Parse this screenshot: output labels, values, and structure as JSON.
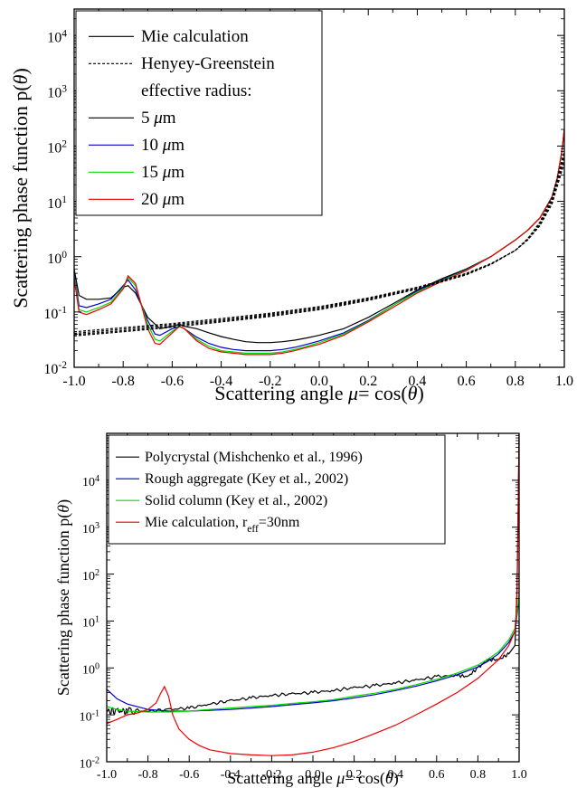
{
  "chart_data": [
    {
      "type": "line",
      "xlabel_parts": [
        "Scattering angle ",
        "μ",
        "= cos(",
        "θ",
        ")"
      ],
      "ylabel_parts": [
        "Scattering phase function p(",
        "θ",
        ")"
      ],
      "xlim": [
        -1.0,
        1.0
      ],
      "ylim": [
        0.01,
        30000
      ],
      "yscale": "log",
      "x_ticks": [
        "-1.0",
        "-0.8",
        "-0.6",
        "-0.4",
        "-0.2",
        "0.0",
        "0.2",
        "0.4",
        "0.6",
        "0.8",
        "1.0"
      ],
      "y_ticks": [
        {
          "base": "10",
          "exp": "-2"
        },
        {
          "base": "10",
          "exp": "-1"
        },
        {
          "base": "10",
          "exp": "0"
        },
        {
          "base": "10",
          "exp": "1"
        },
        {
          "base": "10",
          "exp": "2"
        },
        {
          "base": "10",
          "exp": "3"
        },
        {
          "base": "10",
          "exp": "4"
        }
      ],
      "legend_position": "top-left",
      "legend": [
        {
          "label": "Mie calculation",
          "style": "solid",
          "color": "#000000"
        },
        {
          "label": "Henyey-Greenstein",
          "style": "dashed",
          "color": "#000000"
        },
        {
          "label": "effective radius:",
          "style": "none",
          "color": "#000000"
        },
        {
          "label": "5 ",
          "unit_mu": "μ",
          "unit_rest": "m",
          "style": "solid",
          "color": "#000000"
        },
        {
          "label": "10 ",
          "unit_mu": "μ",
          "unit_rest": "m",
          "style": "solid",
          "color": "#0000cc"
        },
        {
          "label": "15 ",
          "unit_mu": "μ",
          "unit_rest": "m",
          "style": "solid",
          "color": "#00dd00"
        },
        {
          "label": "20 ",
          "unit_mu": "μ",
          "unit_rest": "m",
          "style": "solid",
          "color": "#ee0000"
        }
      ],
      "series": [
        {
          "color": "#000000",
          "style": "solid",
          "x": [
            -1.0,
            -0.98,
            -0.95,
            -0.9,
            -0.85,
            -0.8,
            -0.78,
            -0.75,
            -0.7,
            -0.65,
            -0.6,
            -0.57,
            -0.55,
            -0.5,
            -0.45,
            -0.4,
            -0.35,
            -0.3,
            -0.25,
            -0.2,
            -0.15,
            -0.1,
            -0.05,
            0.0,
            0.1,
            0.2,
            0.3,
            0.4,
            0.5,
            0.6,
            0.7,
            0.8,
            0.85,
            0.9,
            0.95,
            0.97,
            0.99,
            1.0
          ],
          "y": [
            0.6,
            0.2,
            0.17,
            0.17,
            0.18,
            0.28,
            0.3,
            0.22,
            0.08,
            0.05,
            0.055,
            0.06,
            0.055,
            0.05,
            0.042,
            0.036,
            0.032,
            0.029,
            0.028,
            0.028,
            0.029,
            0.031,
            0.034,
            0.038,
            0.05,
            0.08,
            0.14,
            0.25,
            0.4,
            0.6,
            1.0,
            2.0,
            3.0,
            5.0,
            12,
            25,
            80,
            200
          ]
        },
        {
          "color": "#0000cc",
          "style": "solid",
          "x": [
            -1.0,
            -0.98,
            -0.95,
            -0.9,
            -0.85,
            -0.8,
            -0.78,
            -0.75,
            -0.7,
            -0.67,
            -0.65,
            -0.6,
            -0.57,
            -0.55,
            -0.5,
            -0.45,
            -0.4,
            -0.35,
            -0.3,
            -0.25,
            -0.2,
            -0.15,
            -0.1,
            -0.05,
            0.0,
            0.1,
            0.2,
            0.3,
            0.4,
            0.5,
            0.6,
            0.7,
            0.8,
            0.85,
            0.9,
            0.95,
            0.97,
            0.99,
            1.0
          ],
          "y": [
            0.5,
            0.13,
            0.12,
            0.14,
            0.17,
            0.3,
            0.38,
            0.25,
            0.07,
            0.04,
            0.038,
            0.05,
            0.055,
            0.05,
            0.035,
            0.027,
            0.023,
            0.021,
            0.02,
            0.02,
            0.02,
            0.021,
            0.023,
            0.026,
            0.03,
            0.042,
            0.07,
            0.13,
            0.24,
            0.38,
            0.58,
            1.0,
            2.0,
            3.0,
            5.0,
            12,
            25,
            80,
            200
          ]
        },
        {
          "color": "#00dd00",
          "style": "solid",
          "x": [
            -1.0,
            -0.98,
            -0.95,
            -0.9,
            -0.85,
            -0.8,
            -0.78,
            -0.75,
            -0.7,
            -0.67,
            -0.65,
            -0.6,
            -0.57,
            -0.55,
            -0.5,
            -0.45,
            -0.4,
            -0.35,
            -0.3,
            -0.25,
            -0.2,
            -0.15,
            -0.1,
            -0.05,
            0.0,
            0.1,
            0.2,
            0.3,
            0.4,
            0.5,
            0.6,
            0.7,
            0.8,
            0.85,
            0.9,
            0.95,
            0.97,
            0.99,
            1.0
          ],
          "y": [
            0.45,
            0.11,
            0.1,
            0.12,
            0.15,
            0.28,
            0.42,
            0.3,
            0.06,
            0.032,
            0.03,
            0.045,
            0.055,
            0.05,
            0.032,
            0.024,
            0.02,
            0.019,
            0.018,
            0.018,
            0.018,
            0.019,
            0.021,
            0.024,
            0.028,
            0.04,
            0.068,
            0.13,
            0.23,
            0.37,
            0.57,
            1.0,
            2.0,
            3.0,
            5.0,
            12,
            25,
            80,
            200
          ]
        },
        {
          "color": "#ee0000",
          "style": "solid",
          "x": [
            -1.0,
            -0.98,
            -0.95,
            -0.9,
            -0.85,
            -0.8,
            -0.78,
            -0.75,
            -0.7,
            -0.67,
            -0.65,
            -0.6,
            -0.57,
            -0.55,
            -0.5,
            -0.45,
            -0.4,
            -0.35,
            -0.3,
            -0.25,
            -0.2,
            -0.15,
            -0.1,
            -0.05,
            0.0,
            0.1,
            0.2,
            0.3,
            0.4,
            0.5,
            0.6,
            0.7,
            0.8,
            0.85,
            0.9,
            0.95,
            0.97,
            0.99,
            1.0
          ],
          "y": [
            0.4,
            0.1,
            0.09,
            0.11,
            0.14,
            0.26,
            0.45,
            0.33,
            0.05,
            0.027,
            0.026,
            0.042,
            0.055,
            0.05,
            0.03,
            0.022,
            0.019,
            0.018,
            0.017,
            0.017,
            0.017,
            0.018,
            0.02,
            0.023,
            0.026,
            0.038,
            0.066,
            0.12,
            0.22,
            0.36,
            0.56,
            1.0,
            2.0,
            3.0,
            5.0,
            12,
            25,
            80,
            200
          ]
        },
        {
          "color": "#000000",
          "style": "dashed",
          "x": [
            -1.0,
            -0.8,
            -0.6,
            -0.4,
            -0.2,
            0.0,
            0.2,
            0.4,
            0.6,
            0.7,
            0.8,
            0.85,
            0.9,
            0.95,
            1.0
          ],
          "y": [
            0.044,
            0.052,
            0.062,
            0.076,
            0.095,
            0.125,
            0.18,
            0.28,
            0.5,
            0.75,
            1.3,
            2.0,
            3.6,
            9,
            50
          ]
        },
        {
          "color": "#000000",
          "style": "dashed",
          "x": [
            -1.0,
            -0.8,
            -0.6,
            -0.4,
            -0.2,
            0.0,
            0.2,
            0.4,
            0.6,
            0.7,
            0.8,
            0.85,
            0.9,
            0.95,
            1.0
          ],
          "y": [
            0.041,
            0.049,
            0.059,
            0.072,
            0.091,
            0.12,
            0.174,
            0.272,
            0.49,
            0.74,
            1.3,
            2.0,
            3.8,
            10,
            60
          ]
        },
        {
          "color": "#000000",
          "style": "dashed",
          "x": [
            -1.0,
            -0.8,
            -0.6,
            -0.4,
            -0.2,
            0.0,
            0.2,
            0.4,
            0.6,
            0.7,
            0.8,
            0.85,
            0.9,
            0.95,
            1.0
          ],
          "y": [
            0.039,
            0.046,
            0.056,
            0.069,
            0.087,
            0.115,
            0.168,
            0.266,
            0.48,
            0.73,
            1.3,
            2.1,
            4.0,
            11,
            70
          ]
        },
        {
          "color": "#000000",
          "style": "dashed",
          "x": [
            -1.0,
            -0.8,
            -0.6,
            -0.4,
            -0.2,
            0.0,
            0.2,
            0.4,
            0.6,
            0.7,
            0.8,
            0.85,
            0.9,
            0.95,
            1.0
          ],
          "y": [
            0.037,
            0.044,
            0.053,
            0.066,
            0.083,
            0.11,
            0.162,
            0.26,
            0.47,
            0.72,
            1.3,
            2.1,
            4.2,
            12,
            80
          ]
        }
      ]
    },
    {
      "type": "line",
      "xlabel_parts": [
        "Scattering angle ",
        "μ",
        "= cos(",
        "θ",
        ")"
      ],
      "ylabel_parts": [
        "Scattering phase function p(",
        "θ",
        ")"
      ],
      "xlim": [
        -1.0,
        1.0
      ],
      "ylim": [
        0.01,
        100000
      ],
      "yscale": "log",
      "x_ticks": [
        "-1.0",
        "-0.8",
        "-0.6",
        "-0.4",
        "-0.2",
        "0.0",
        "0.2",
        "0.4",
        "0.6",
        "0.8",
        "1.0"
      ],
      "y_ticks": [
        {
          "base": "10",
          "exp": "-2"
        },
        {
          "base": "10",
          "exp": "-1"
        },
        {
          "base": "10",
          "exp": "0"
        },
        {
          "base": "10",
          "exp": "1"
        },
        {
          "base": "10",
          "exp": "2"
        },
        {
          "base": "10",
          "exp": "3"
        },
        {
          "base": "10",
          "exp": "4"
        }
      ],
      "legend_position": "top-left",
      "legend": [
        {
          "label": "Polycrystal (Mishchenko et al., 1996)",
          "color": "#000000"
        },
        {
          "label": "Rough aggregate (Key et al., 2002)",
          "color": "#0000cc"
        },
        {
          "label": "Solid column (Key et al., 2002)",
          "color": "#00dd00"
        },
        {
          "label": "Mie calculation, r",
          "sub": "eff",
          "after": "=30nm",
          "color": "#ee0000"
        }
      ],
      "series": [
        {
          "name": "Polycrystal (Mishchenko et al., 1996)",
          "color": "#000000",
          "style": "solid",
          "noisy": true,
          "x": [
            -1.0,
            -0.95,
            -0.9,
            -0.8,
            -0.7,
            -0.6,
            -0.5,
            -0.4,
            -0.3,
            -0.2,
            -0.1,
            0.0,
            0.1,
            0.2,
            0.3,
            0.4,
            0.5,
            0.6,
            0.7,
            0.75,
            0.8,
            0.85,
            0.9,
            0.95,
            0.98,
            0.99,
            1.0
          ],
          "y": [
            0.12,
            0.12,
            0.12,
            0.12,
            0.13,
            0.14,
            0.17,
            0.2,
            0.23,
            0.26,
            0.28,
            0.3,
            0.33,
            0.38,
            0.42,
            0.48,
            0.55,
            0.65,
            0.7,
            0.65,
            1.0,
            1.5,
            1.5,
            2.0,
            3.0,
            50,
            100000
          ]
        },
        {
          "name": "Rough aggregate (Key et al., 2002)",
          "color": "#0000cc",
          "style": "solid",
          "x": [
            -1.0,
            -0.95,
            -0.9,
            -0.8,
            -0.7,
            -0.6,
            -0.5,
            -0.4,
            -0.3,
            -0.2,
            -0.1,
            0.0,
            0.1,
            0.2,
            0.3,
            0.4,
            0.5,
            0.6,
            0.7,
            0.8,
            0.85,
            0.9,
            0.95,
            0.98,
            1.0
          ],
          "y": [
            0.35,
            0.22,
            0.17,
            0.13,
            0.12,
            0.12,
            0.125,
            0.13,
            0.14,
            0.15,
            0.165,
            0.18,
            0.2,
            0.23,
            0.27,
            0.33,
            0.41,
            0.53,
            0.72,
            1.05,
            1.4,
            2.0,
            3.5,
            6,
            30
          ]
        },
        {
          "name": "Solid column (Key et al., 2002)",
          "color": "#00dd00",
          "style": "solid",
          "x": [
            -1.0,
            -0.95,
            -0.9,
            -0.8,
            -0.7,
            -0.6,
            -0.5,
            -0.4,
            -0.3,
            -0.2,
            -0.1,
            0.0,
            0.1,
            0.2,
            0.3,
            0.4,
            0.5,
            0.6,
            0.7,
            0.8,
            0.85,
            0.9,
            0.95,
            0.98,
            1.0
          ],
          "y": [
            0.15,
            0.13,
            0.12,
            0.115,
            0.115,
            0.12,
            0.13,
            0.14,
            0.15,
            0.16,
            0.175,
            0.19,
            0.21,
            0.25,
            0.29,
            0.35,
            0.44,
            0.57,
            0.78,
            1.15,
            1.55,
            2.2,
            4.0,
            7,
            35
          ]
        },
        {
          "name": "Mie calculation, reff=30nm",
          "color": "#ee0000",
          "style": "solid",
          "x": [
            -1.0,
            -0.95,
            -0.9,
            -0.85,
            -0.8,
            -0.76,
            -0.74,
            -0.72,
            -0.7,
            -0.68,
            -0.65,
            -0.6,
            -0.55,
            -0.5,
            -0.4,
            -0.3,
            -0.2,
            -0.1,
            0.0,
            0.1,
            0.2,
            0.3,
            0.4,
            0.5,
            0.6,
            0.7,
            0.8,
            0.9,
            0.95,
            0.98,
            0.99,
            1.0
          ],
          "y": [
            0.065,
            0.08,
            0.1,
            0.11,
            0.13,
            0.18,
            0.28,
            0.4,
            0.25,
            0.1,
            0.05,
            0.03,
            0.022,
            0.018,
            0.015,
            0.014,
            0.0135,
            0.014,
            0.016,
            0.02,
            0.027,
            0.04,
            0.06,
            0.1,
            0.17,
            0.3,
            0.6,
            1.5,
            3.0,
            6.0,
            30,
            100000
          ]
        }
      ]
    }
  ]
}
